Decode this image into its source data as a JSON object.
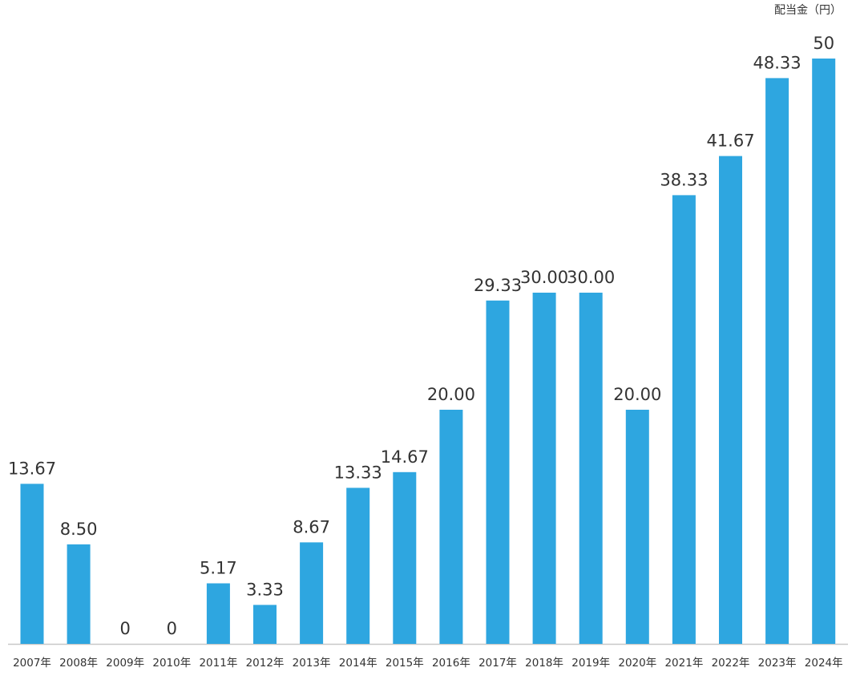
{
  "chart_data": {
    "type": "bar",
    "unit_label": "配当金（円）",
    "categories": [
      "2007年",
      "2008年",
      "2009年",
      "2010年",
      "2011年",
      "2012年",
      "2013年",
      "2014年",
      "2015年",
      "2016年",
      "2017年",
      "2018年",
      "2019年",
      "2020年",
      "2021年",
      "2022年",
      "2023年",
      "2024年"
    ],
    "values": [
      13.67,
      8.5,
      0,
      0,
      5.17,
      3.33,
      8.67,
      13.33,
      14.67,
      20.0,
      29.33,
      30.0,
      30.0,
      20.0,
      38.33,
      41.67,
      48.33,
      50
    ],
    "value_labels": [
      "13.67",
      "8.50",
      "0",
      "0",
      "5.17",
      "3.33",
      "8.67",
      "13.33",
      "14.67",
      "20.00",
      "29.33",
      "30.00",
      "30.00",
      "20.00",
      "38.33",
      "41.67",
      "48.33",
      "50"
    ],
    "ylim": [
      0,
      50
    ],
    "grid": false,
    "colors": {
      "bar": "#2ea6e0",
      "axis": "#c8c8c8",
      "text": "#333333"
    }
  }
}
